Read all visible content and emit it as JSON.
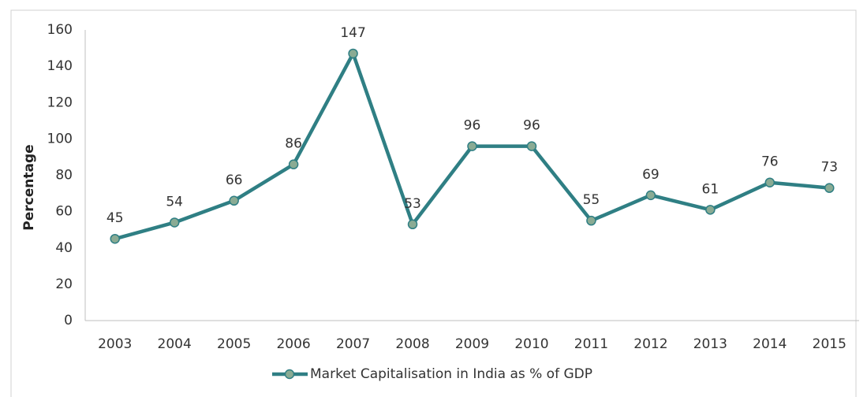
{
  "chart_data": {
    "type": "line",
    "categories": [
      "2003",
      "2004",
      "2005",
      "2006",
      "2007",
      "2008",
      "2009",
      "2010",
      "2011",
      "2012",
      "2013",
      "2014",
      "2015"
    ],
    "series": [
      {
        "name": "Market Capitalisation in India as % of GDP",
        "color": "#2f7f84",
        "marker_color": "#8aab94",
        "values": [
          45,
          54,
          66,
          86,
          147,
          53,
          96,
          96,
          55,
          69,
          61,
          76,
          73
        ]
      }
    ],
    "y_label": "Percentage",
    "ylim": [
      0,
      160
    ],
    "yticks": [
      0,
      20,
      40,
      60,
      80,
      100,
      120,
      140,
      160
    ],
    "grid": false,
    "legend": "bottom"
  }
}
